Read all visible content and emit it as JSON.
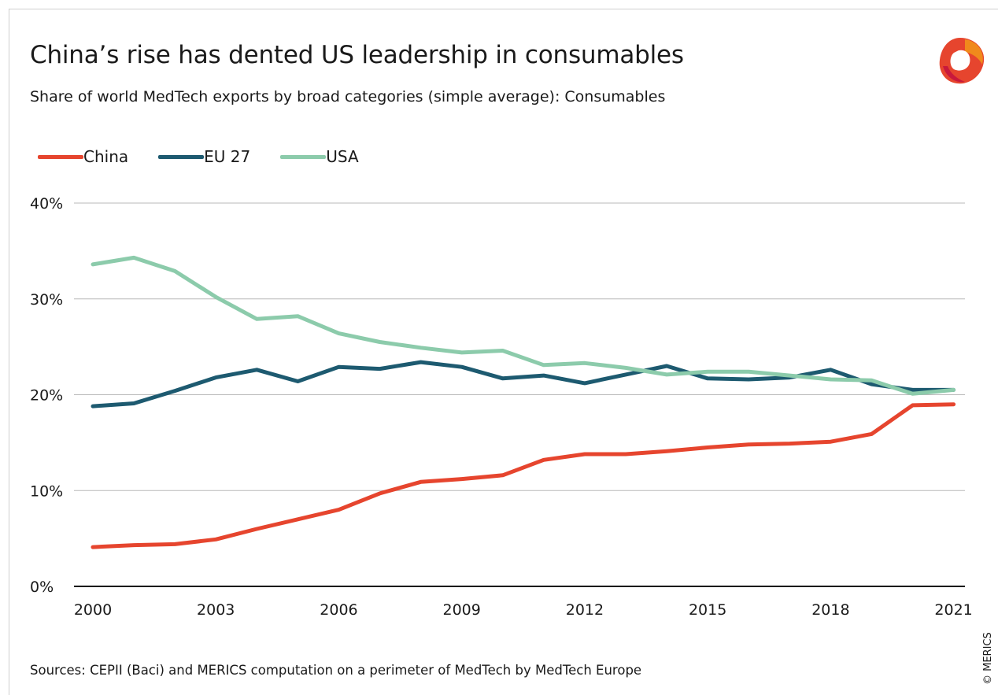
{
  "header": {
    "title": "China’s rise has dented US leadership in consumables",
    "subtitle": "Share of world MedTech exports by broad categories (simple average): Consumables"
  },
  "footer": {
    "source": "Sources: CEPII (Baci) and MERICS computation on a perimeter of MedTech by MedTech Europe",
    "copyright": "© MERICS"
  },
  "brand": {
    "logo_icon": "merics-logo-icon",
    "colors": [
      "#e6452e",
      "#f08a1c",
      "#c8193c"
    ]
  },
  "chart_data": {
    "type": "line",
    "title": "China’s rise has dented US leadership in consumables",
    "subtitle": "Share of world MedTech exports by broad categories (simple average): Consumables",
    "xlabel": "",
    "ylabel": "",
    "x": [
      2000,
      2001,
      2002,
      2003,
      2004,
      2005,
      2006,
      2007,
      2008,
      2009,
      2010,
      2011,
      2012,
      2013,
      2014,
      2015,
      2016,
      2017,
      2018,
      2019,
      2020,
      2021
    ],
    "xticks": [
      "2000",
      "2003",
      "2006",
      "2009",
      "2012",
      "2015",
      "2018",
      "2021"
    ],
    "xlim": [
      2000,
      2021
    ],
    "ylim": [
      0,
      40
    ],
    "yticks": [
      "0%",
      "10%",
      "20%",
      "30%",
      "40%"
    ],
    "grid": true,
    "legend_position": "top-left",
    "series": [
      {
        "name": "China",
        "color": "#e6452e",
        "values": [
          4.1,
          4.3,
          4.4,
          4.9,
          6.0,
          7.0,
          8.0,
          9.7,
          10.9,
          11.2,
          11.6,
          13.2,
          13.8,
          13.8,
          14.1,
          14.5,
          14.8,
          14.9,
          15.1,
          15.9,
          18.9,
          19.0
        ]
      },
      {
        "name": "EU 27",
        "color": "#1d5a70",
        "values": [
          18.8,
          19.1,
          20.4,
          21.8,
          22.6,
          21.4,
          22.9,
          22.7,
          23.4,
          22.9,
          21.7,
          22.0,
          21.2,
          22.1,
          23.0,
          21.7,
          21.6,
          21.8,
          22.6,
          21.1,
          20.5,
          20.5
        ]
      },
      {
        "name": "USA",
        "color": "#8ccbab",
        "values": [
          33.6,
          34.3,
          32.9,
          30.2,
          27.9,
          28.2,
          26.4,
          25.5,
          24.9,
          24.4,
          24.6,
          23.1,
          23.3,
          22.8,
          22.1,
          22.4,
          22.4,
          22.0,
          21.6,
          21.5,
          20.1,
          20.5
        ]
      }
    ]
  }
}
